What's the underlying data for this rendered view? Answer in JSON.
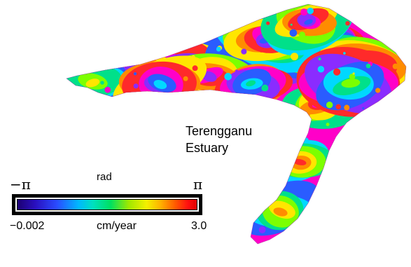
{
  "map": {
    "estuary_label_line1": "Terengganu",
    "estuary_label_line2": "Estuary",
    "phase_palette": [
      "#ff00c8",
      "#ff2a2a",
      "#ff8c00",
      "#ffe600",
      "#7cff00",
      "#00e08a",
      "#00d8ff",
      "#2a5cff",
      "#8a2cff"
    ]
  },
  "colorbar": {
    "top_unit": "rad",
    "top_min": "−π",
    "top_max": "π",
    "bottom_unit": "cm/year",
    "bottom_min": "−0.002",
    "bottom_max": "3.0"
  }
}
